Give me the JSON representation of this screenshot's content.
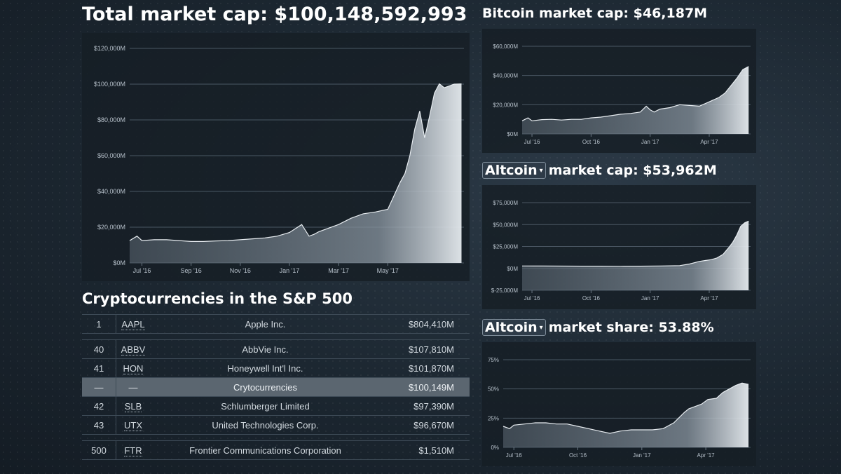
{
  "main_title": "Total market cap: $100,148,592,993",
  "btc_title": "Bitcoin market cap: $46,187M",
  "alt_cap": {
    "selector": "Altcoin",
    "rest": "market cap: $53,962M"
  },
  "alt_share": {
    "selector": "Altcoin",
    "rest": "market share: 53.88%"
  },
  "sp_title": "Cryptocurrencies in the S&P 500",
  "sp_rows": [
    {
      "rank": "1",
      "ticker": "AAPL",
      "name": "Apple Inc.",
      "cap": "$804,410M"
    },
    {
      "rank": "40",
      "ticker": "ABBV",
      "name": "AbbVie Inc.",
      "cap": "$107,810M"
    },
    {
      "rank": "41",
      "ticker": "HON",
      "name": "Honeywell Int'l Inc.",
      "cap": "$101,870M"
    },
    {
      "rank": "—",
      "ticker": "—",
      "name": "Crytocurrencies",
      "cap": "$100,149M"
    },
    {
      "rank": "42",
      "ticker": "SLB",
      "name": "Schlumberger Limited",
      "cap": "$97,390M"
    },
    {
      "rank": "43",
      "ticker": "UTX",
      "name": "United Technologies Corp.",
      "cap": "$96,670M"
    },
    {
      "rank": "500",
      "ticker": "FTR",
      "name": "Frontier Communications Corporation",
      "cap": "$1,510M"
    }
  ],
  "chart_data": [
    {
      "id": "total",
      "type": "area",
      "title": "Total market cap: $100,148,592,993",
      "x": [
        0,
        0.3,
        0.5,
        1,
        1.5,
        2,
        2.5,
        3,
        3.5,
        4,
        4.5,
        5,
        5.5,
        6,
        6.5,
        7,
        7.3,
        7.5,
        7.7,
        8,
        8.5,
        9,
        9.5,
        10,
        10.5,
        10.7,
        11,
        11.2,
        11.4,
        11.6,
        11.8,
        12.0,
        12.2,
        12.4,
        12.6,
        12.8,
        13.0,
        13.2,
        13.4,
        13.5
      ],
      "values": [
        12500,
        15000,
        12500,
        13000,
        13000,
        12500,
        12000,
        12000,
        12300,
        12500,
        13000,
        13500,
        14000,
        15000,
        17000,
        21500,
        15000,
        16000,
        17500,
        19000,
        21500,
        25000,
        27500,
        28500,
        30000,
        36000,
        45000,
        50000,
        60000,
        75000,
        85000,
        70000,
        82000,
        95000,
        100148,
        98000,
        99000,
        100000,
        100100,
        100148
      ],
      "values_note": "USD millions; x in months from Jul 1 2016",
      "xticks": [
        "Jul '16",
        "Sep '16",
        "Nov '16",
        "Jan '17",
        "Mar '17",
        "May '17"
      ],
      "xtick_pos": [
        0.5,
        2.5,
        4.5,
        6.5,
        8.5,
        10.5
      ],
      "yticks": [
        "$0M",
        "$20,000M",
        "$40,000M",
        "$60,000M",
        "$80,000M",
        "$100,000M",
        "$120,000M"
      ],
      "ylim": [
        0,
        120000
      ]
    },
    {
      "id": "btc",
      "type": "area",
      "title": "Bitcoin market cap: $46,187M",
      "x": [
        0,
        0.3,
        0.5,
        1,
        1.5,
        2,
        2.5,
        3,
        3.5,
        4,
        4.5,
        5,
        5.5,
        6,
        6.3,
        6.5,
        6.7,
        7,
        7.5,
        8,
        8.5,
        9,
        9.5,
        10,
        10.3,
        10.6,
        10.9,
        11.2,
        11.5
      ],
      "values": [
        9000,
        11000,
        9000,
        9800,
        10000,
        9500,
        10000,
        10000,
        11000,
        11500,
        12500,
        13500,
        14000,
        15000,
        19000,
        16500,
        15000,
        17000,
        18000,
        20000,
        19500,
        19000,
        22000,
        25000,
        28000,
        33000,
        38000,
        44000,
        46187
      ],
      "values_note": "USD millions; x in months from Jun 15 2016",
      "xticks": [
        "Jul '16",
        "Oct '16",
        "Jan '17",
        "Apr '17"
      ],
      "xtick_pos": [
        0.5,
        3.5,
        6.5,
        9.5
      ],
      "yticks": [
        "$0M",
        "$20,000M",
        "$40,000M",
        "$60,000M"
      ],
      "ylim": [
        0,
        60000
      ]
    },
    {
      "id": "altcap",
      "type": "area",
      "title": "Altcoin market cap: $53,962M",
      "x": [
        0,
        1,
        2,
        3,
        4,
        5,
        6,
        7,
        8,
        8.5,
        9,
        9.3,
        9.6,
        9.9,
        10.2,
        10.5,
        10.7,
        10.9,
        11.1,
        11.3,
        11.5
      ],
      "values": [
        2800,
        2700,
        2600,
        2500,
        2500,
        2400,
        2500,
        2800,
        3200,
        5000,
        8000,
        9000,
        10000,
        12000,
        16000,
        24000,
        30000,
        38000,
        48000,
        52000,
        53962
      ],
      "values_note": "USD millions",
      "xticks": [
        "Jul '16",
        "Oct '16",
        "Jan '17",
        "Apr '17"
      ],
      "xtick_pos": [
        0.5,
        3.5,
        6.5,
        9.5
      ],
      "yticks": [
        "$-25,000M",
        "$0M",
        "$25,000M",
        "$50,000M",
        "$75,000M"
      ],
      "ylim": [
        -25000,
        75000
      ]
    },
    {
      "id": "altshare",
      "type": "area",
      "title": "Altcoin market share: 53.88%",
      "x": [
        0,
        0.3,
        0.5,
        1,
        1.5,
        2,
        2.5,
        3,
        3.5,
        4,
        4.5,
        5,
        5.5,
        6,
        6.5,
        7,
        7.5,
        8,
        8.5,
        8.7,
        9,
        9.3,
        9.6,
        10,
        10.3,
        10.6,
        10.9,
        11.2,
        11.5
      ],
      "values": [
        18,
        16,
        19,
        20,
        21,
        21,
        20,
        20,
        18,
        16,
        14,
        12,
        14,
        15,
        15,
        15,
        16,
        21,
        30,
        33,
        35,
        37,
        41,
        42,
        47,
        50,
        53,
        55,
        53.88
      ],
      "values_note": "percent",
      "xticks": [
        "Jul '16",
        "Oct '16",
        "Jan '17",
        "Apr '17"
      ],
      "xtick_pos": [
        0.5,
        3.5,
        6.5,
        9.5
      ],
      "yticks": [
        "0%",
        "25%",
        "50%",
        "75%"
      ],
      "ylim": [
        0,
        75
      ]
    }
  ]
}
